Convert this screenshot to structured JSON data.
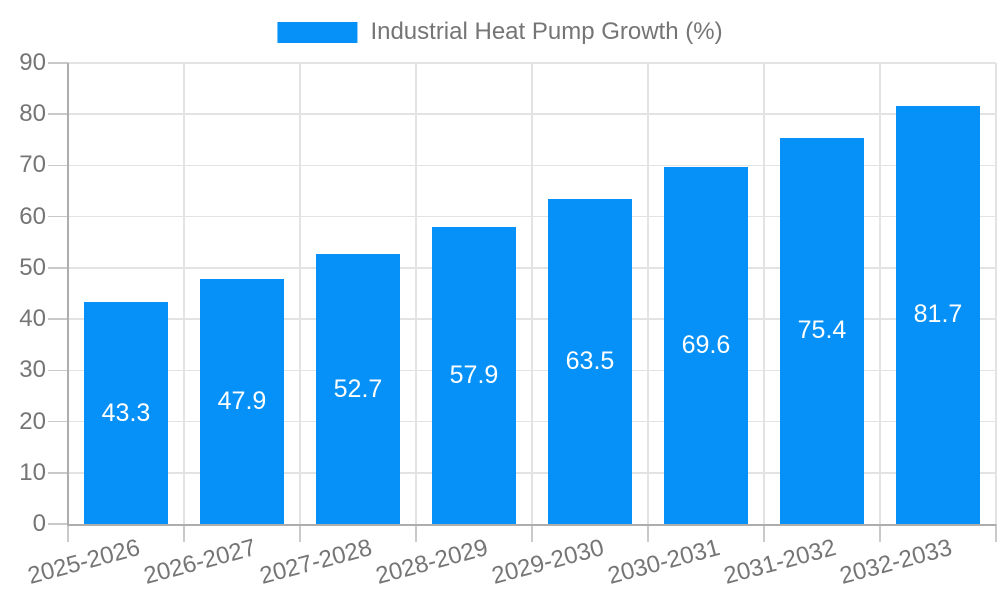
{
  "legend": {
    "label": "Industrial Heat Pump Growth (%)"
  },
  "chart_data": {
    "type": "bar",
    "title": "Industrial Heat Pump Growth (%)",
    "series": [
      {
        "name": "Industrial Heat Pump Growth (%)",
        "values": [
          43.3,
          47.9,
          52.7,
          57.9,
          63.5,
          69.6,
          75.4,
          81.7
        ]
      }
    ],
    "categories": [
      "2025-2026",
      "2026-2027",
      "2027-2028",
      "2028-2029",
      "2029-2030",
      "2030-2031",
      "2031-2032",
      "2032-2033"
    ],
    "value_labels": [
      "43.3",
      "47.9",
      "52.7",
      "57.9",
      "63.5",
      "69.6",
      "75.4",
      "81.7"
    ],
    "xlabel": "",
    "ylabel": "",
    "ylim": [
      0,
      90
    ],
    "y_ticks": [
      0,
      10,
      20,
      30,
      40,
      50,
      60,
      70,
      80,
      90
    ],
    "grid": "on",
    "legend_position": "top-center",
    "bar_labels_position": "inside-center",
    "x_label_rotation_deg": -15,
    "colors": {
      "bar": "#0591F8",
      "bar_label": "#FFFFFF",
      "axis_text": "#757575",
      "grid_line": "#E3E3E3",
      "tick_line": "#C9C9C9",
      "axis_line": "#ADADAD",
      "background": "#FFFFFF"
    }
  }
}
